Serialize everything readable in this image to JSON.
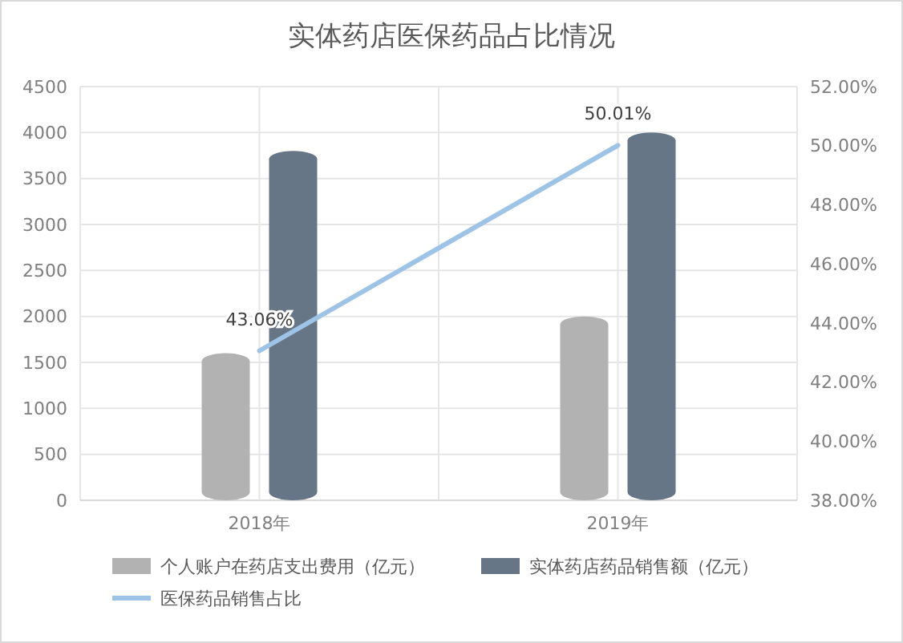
{
  "chart_data": {
    "type": "bar",
    "title": "实体药店医保药品占比情况",
    "categories": [
      "2018年",
      "2019年"
    ],
    "series": [
      {
        "name": "个人账户在药店支出费用（亿元）",
        "color": "#b1b2b1",
        "values": [
          1600,
          2000
        ]
      },
      {
        "name": "实体药店药品销售额（亿元）",
        "color": "#667686",
        "values": [
          3800,
          4000
        ]
      },
      {
        "name": "医保药品销售占比",
        "type": "line",
        "axis": "y2",
        "color": "#9dc3e6",
        "values": [
          43.06,
          50.01
        ],
        "value_labels": [
          "43.06%",
          "50.01%"
        ]
      }
    ],
    "ylim": [
      0,
      4500
    ],
    "yticks": [
      0,
      500,
      1000,
      1500,
      2000,
      2500,
      3000,
      3500,
      4000,
      4500
    ],
    "y2lim": [
      38,
      52
    ],
    "y2ticks": [
      {
        "value": 38,
        "label": "38.00%"
      },
      {
        "value": 40,
        "label": "40.00%"
      },
      {
        "value": 42,
        "label": "42.00%"
      },
      {
        "value": 44,
        "label": "44.00%"
      },
      {
        "value": 46,
        "label": "46.00%"
      },
      {
        "value": 48,
        "label": "48.00%"
      },
      {
        "value": 50,
        "label": "50.00%"
      },
      {
        "value": 52,
        "label": "52.00%"
      }
    ],
    "grid": true,
    "legend": "bottom"
  }
}
